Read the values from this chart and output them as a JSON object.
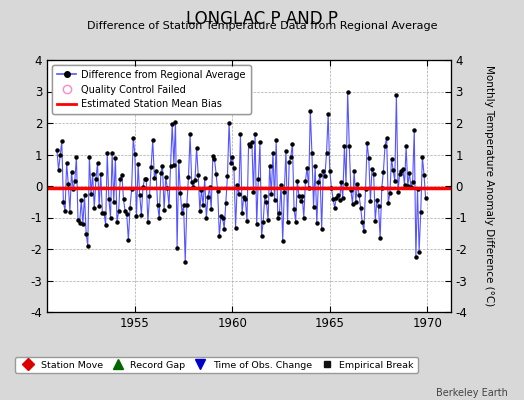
{
  "title": "LONGLAC P AND P",
  "subtitle": "Difference of Station Temperature Data from Regional Average",
  "ylabel": "Monthly Temperature Anomaly Difference (°C)",
  "bias_value": -0.05,
  "ylim": [
    -4,
    4
  ],
  "xlim": [
    1950.5,
    1971.2
  ],
  "xticks": [
    1955,
    1960,
    1965,
    1970
  ],
  "yticks": [
    -4,
    -3,
    -2,
    -1,
    0,
    1,
    2,
    3,
    4
  ],
  "line_color": "#5555ff",
  "marker_color": "#000000",
  "bias_color": "#ff0000",
  "background_color": "#d8d8d8",
  "plot_bg_color": "#ffffff",
  "grid_color": "#aaaaaa",
  "berkeley_earth_text": "Berkeley Earth",
  "seed": 42,
  "n_months": 228,
  "start_year": 1951.0
}
